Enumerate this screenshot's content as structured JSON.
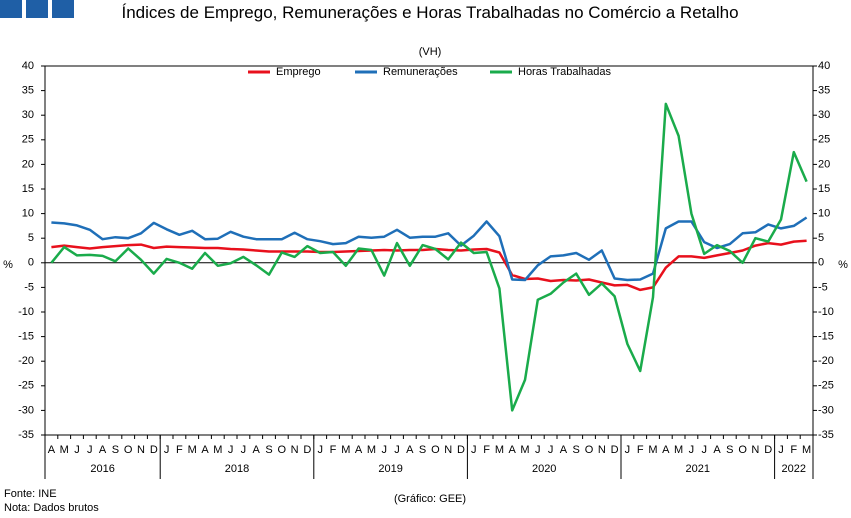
{
  "chart_data": {
    "type": "line",
    "title": "Índices de Emprego, Remunerações e Horas Trabalhadas no Comércio a Retalho",
    "subtitle": "(VH)",
    "y_label": "%",
    "y2_label": "%",
    "source": "Fonte: INE",
    "note": "Nota: Dados brutos",
    "credit": "(Gráfico: GEE)",
    "categories": [
      "A",
      "M",
      "J",
      "J",
      "A",
      "S",
      "O",
      "N",
      "D",
      "J",
      "F",
      "M",
      "A",
      "M",
      "J",
      "J",
      "A",
      "S",
      "O",
      "N",
      "D",
      "J",
      "F",
      "M",
      "A",
      "M",
      "J",
      "J",
      "A",
      "S",
      "O",
      "N",
      "D",
      "J",
      "F",
      "M",
      "A",
      "M",
      "J",
      "J",
      "A",
      "S",
      "O",
      "N",
      "D",
      "J",
      "F",
      "M",
      "A",
      "M",
      "J",
      "J",
      "A",
      "S",
      "O",
      "N",
      "D",
      "J",
      "F",
      "M"
    ],
    "years": [
      {
        "label": "2016",
        "months": 9
      },
      {
        "label": "2018",
        "months": 12
      },
      {
        "label": "2019",
        "months": 12
      },
      {
        "label": "2020",
        "months": 12
      },
      {
        "label": "2021",
        "months": 12
      },
      {
        "label": "2022",
        "months": 3
      }
    ],
    "ylim": [
      -35,
      40
    ],
    "yticks": [
      -35,
      -30,
      -25,
      -20,
      -15,
      -10,
      -5,
      0,
      5,
      10,
      15,
      20,
      25,
      30,
      35,
      40
    ],
    "series": [
      {
        "name": "Emprego",
        "color": "#e8101c",
        "values": [
          3.2,
          3.5,
          3.2,
          2.9,
          3.2,
          3.4,
          3.6,
          3.7,
          3.0,
          3.3,
          3.2,
          3.1,
          3.0,
          3.0,
          2.8,
          2.7,
          2.5,
          2.3,
          2.3,
          2.3,
          2.3,
          2.2,
          2.2,
          2.3,
          2.4,
          2.5,
          2.6,
          2.5,
          2.6,
          2.6,
          2.8,
          2.6,
          2.5,
          2.7,
          2.8,
          2.1,
          -2.5,
          -3.3,
          -3.2,
          -3.7,
          -3.5,
          -3.6,
          -3.4,
          -4.0,
          -4.6,
          -4.5,
          -5.5,
          -5.0,
          -1.0,
          1.3,
          1.3,
          1.0,
          1.5,
          2.0,
          2.5,
          3.5,
          4.0,
          3.7,
          4.3,
          4.5
        ]
      },
      {
        "name": "Remunerações",
        "color": "#1f6fb8",
        "values": [
          8.2,
          8.0,
          7.6,
          6.7,
          4.8,
          5.2,
          5.0,
          6.0,
          8.1,
          6.8,
          5.7,
          6.5,
          4.8,
          4.9,
          6.3,
          5.3,
          4.8,
          4.8,
          4.8,
          6.1,
          4.8,
          4.4,
          3.8,
          4.0,
          5.3,
          5.1,
          5.3,
          6.7,
          5.1,
          5.3,
          5.3,
          6.0,
          3.5,
          5.5,
          8.4,
          5.4,
          -3.4,
          -3.5,
          -0.5,
          1.3,
          1.5,
          2.0,
          0.6,
          2.5,
          -3.2,
          -3.5,
          -3.4,
          -2.2,
          7.0,
          8.4,
          8.4,
          4.2,
          3.0,
          3.8,
          6.0,
          6.2,
          7.8,
          7.0,
          7.5,
          9.2
        ]
      },
      {
        "name": "Horas Trabalhadas",
        "color": "#1aab4b",
        "values": [
          0.0,
          3.2,
          1.5,
          1.6,
          1.4,
          0.3,
          2.9,
          0.6,
          -2.2,
          0.8,
          0.0,
          -1.2,
          2.0,
          -0.6,
          -0.1,
          1.2,
          -0.5,
          -2.4,
          2.1,
          1.2,
          3.4,
          2.0,
          2.2,
          -0.6,
          2.9,
          2.6,
          -2.6,
          4.0,
          -0.6,
          3.6,
          2.8,
          0.7,
          4.1,
          2.0,
          2.2,
          -5.2,
          -30.0,
          -23.8,
          -7.5,
          -6.3,
          -4.0,
          -2.2,
          -6.5,
          -4.2,
          -6.8,
          -16.5,
          -22.0,
          -7.0,
          32.3,
          25.8,
          10.0,
          1.8,
          3.6,
          2.4,
          0.0,
          5.0,
          4.3,
          8.8,
          22.5,
          16.5
        ]
      }
    ]
  }
}
